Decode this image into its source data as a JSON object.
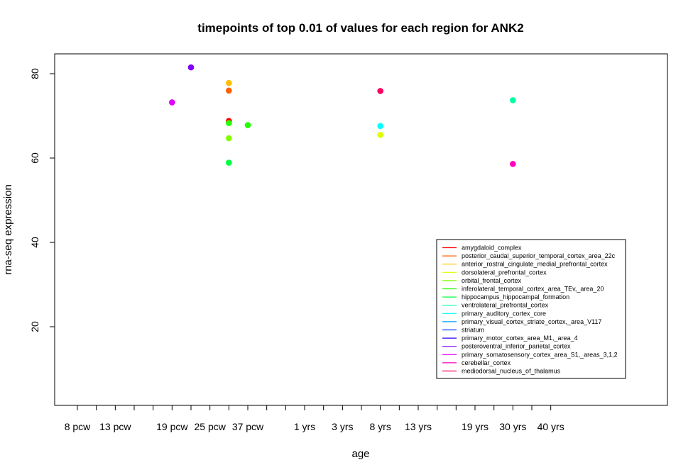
{
  "chart_data": {
    "type": "scatter",
    "title": "timepoints of top 0.01 of values for each region for ANK2",
    "xlabel": "age",
    "ylabel": "rna-seq expression",
    "ylim": [
      0.0,
      87.0
    ],
    "y_ticks": [
      20,
      40,
      60,
      80
    ],
    "x_ticks": [
      "8 pcw",
      "",
      "13 pcw",
      "",
      "",
      "19 pcw",
      "",
      "25 pcw",
      "",
      "37 pcw",
      "",
      "",
      "1 yrs",
      "",
      "3 yrs",
      "",
      "8 yrs",
      "",
      "13 yrs",
      "",
      "",
      "19 yrs",
      "",
      "30 yrs",
      "",
      "40 yrs"
    ],
    "x_tick_labels_shown": [
      "8 pcw",
      "13 pcw",
      "19 pcw",
      "25 pcw",
      "37 pcw",
      "1 yrs",
      "3 yrs",
      "8 yrs",
      "13 yrs",
      "19 yrs",
      "30 yrs",
      "40 yrs"
    ],
    "legend_position": "bottom-right",
    "series": [
      {
        "name": "amygdaloid_complex",
        "color": "#FF0000",
        "points": [
          [
            8,
            68.8
          ]
        ]
      },
      {
        "name": "posterior_caudal_superior_temporal_cortex_area_22c",
        "color": "#FF5F00",
        "points": [
          [
            8,
            76.0
          ]
        ]
      },
      {
        "name": "anterior_rostral_cingulate_medial_prefrontal_cortex",
        "color": "#FFBF00",
        "points": [
          [
            8,
            77.8
          ]
        ]
      },
      {
        "name": "dorsolateral_prefrontal_cortex",
        "color": "#DFFF00",
        "points": [
          [
            16,
            65.5
          ]
        ]
      },
      {
        "name": "orbital_frontal_cortex",
        "color": "#80FF00",
        "points": [
          [
            8,
            64.7
          ]
        ]
      },
      {
        "name": "inferolateral_temporal_cortex_area_TEv,_area_20",
        "color": "#20FF00",
        "points": [
          [
            8,
            68.3
          ],
          [
            9,
            67.8
          ]
        ]
      },
      {
        "name": "hippocampus_hippocampal_formation",
        "color": "#00FF40",
        "points": [
          [
            8,
            58.9
          ]
        ]
      },
      {
        "name": "ventrolateral_prefrontal_cortex",
        "color": "#00FF9F",
        "points": [
          [
            23,
            73.7
          ]
        ]
      },
      {
        "name": "primary_auditory_cortex_core",
        "color": "#00FFFF",
        "points": [
          [
            16,
            67.6
          ]
        ]
      },
      {
        "name": "primary_visual_cortex_striate_cortex,_area_V117",
        "color": "#009FFF",
        "points": []
      },
      {
        "name": "striatum",
        "color": "#0040FF",
        "points": []
      },
      {
        "name": "primary_motor_cortex_area_M1,_area_4",
        "color": "#2000FF",
        "points": []
      },
      {
        "name": "posteroventral_inferior_parietal_cortex",
        "color": "#8000FF",
        "points": [
          [
            6,
            81.5
          ]
        ]
      },
      {
        "name": "primary_somatosensory_cortex_area_S1,_areas_3,1,2",
        "color": "#DF00FF",
        "points": [
          [
            5,
            73.2
          ]
        ]
      },
      {
        "name": "cerebellar_cortex",
        "color": "#FF00BF",
        "points": [
          [
            23,
            58.6
          ]
        ]
      },
      {
        "name": "mediodorsal_nucleus_of_thalamus",
        "color": "#FF0060",
        "points": [
          [
            16,
            75.9
          ]
        ]
      }
    ]
  }
}
